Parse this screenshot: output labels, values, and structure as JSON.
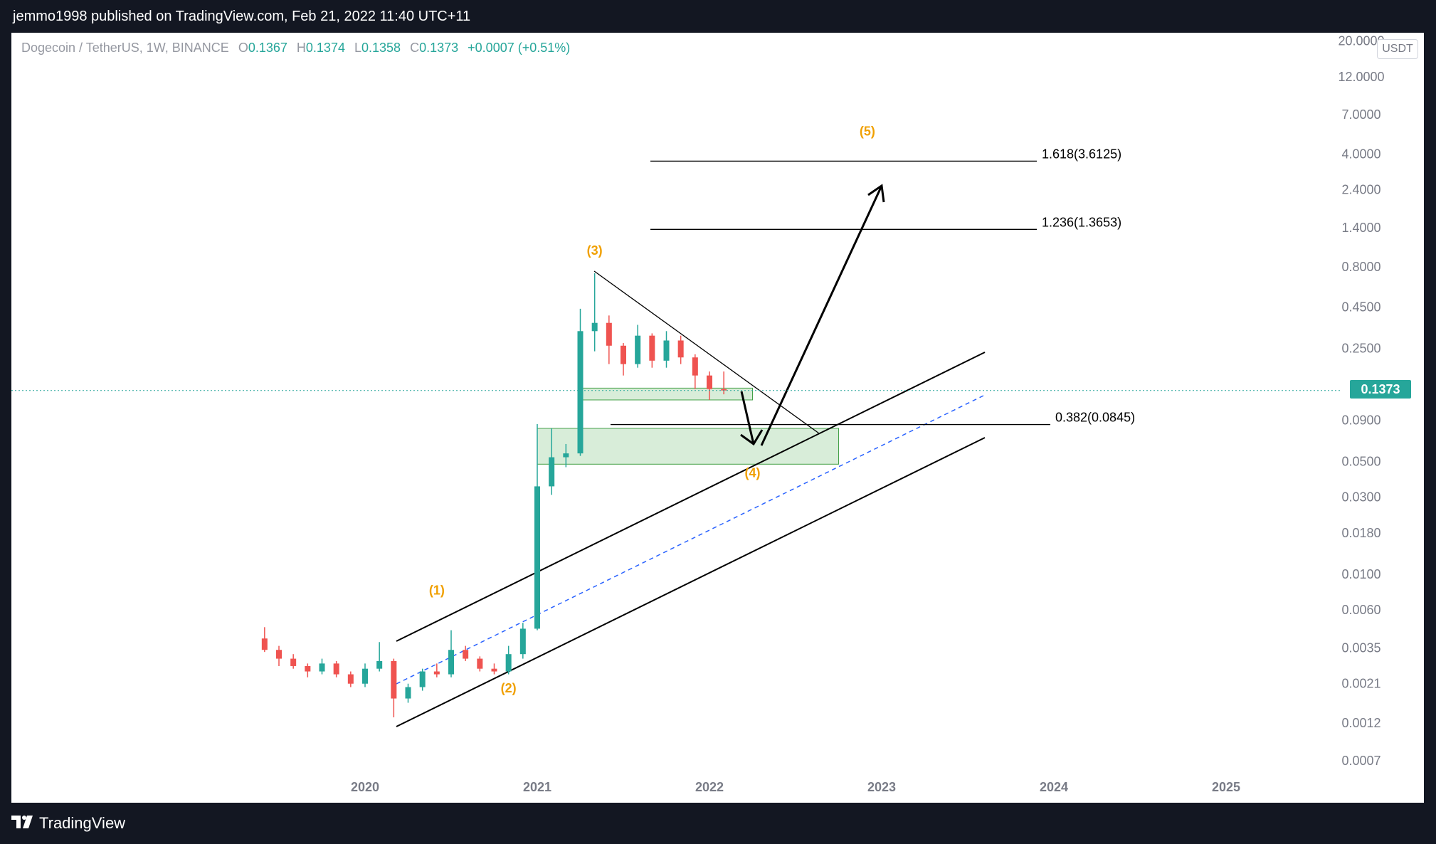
{
  "header": {
    "publish_line": "jemmo1998 published on TradingView.com, Feb 21, 2022 11:40 UTC+11"
  },
  "legend": {
    "symbol": "Dogecoin / TetherUS, 1W, BINANCE",
    "o_key": "O",
    "o": "0.1367",
    "h_key": "H",
    "h": "0.1374",
    "l_key": "L",
    "l": "0.1358",
    "c_key": "C",
    "c": "0.1373",
    "change": "+0.0007 (+0.51%)"
  },
  "currency_badge": "USDT",
  "last_price_tag": "0.1373",
  "footer": {
    "brand": "TradingView"
  },
  "colors": {
    "up": "#26a69a",
    "down": "#ef5350",
    "wave_label": "#f0a000",
    "zone_fill": "#c8e6c9",
    "midline": "#2962ff"
  },
  "chart_data": {
    "type": "candlestick",
    "y_scale": "log",
    "ylim": [
      0.0006,
      20
    ],
    "xlim": [
      "2018-09",
      "2025-12"
    ],
    "y_ticks": [
      "20.0000",
      "12.0000",
      "7.0000",
      "4.0000",
      "2.4000",
      "1.4000",
      "0.8000",
      "0.4500",
      "0.2500",
      "0.0900",
      "0.0500",
      "0.0300",
      "0.0180",
      "0.0100",
      "0.0060",
      "0.0035",
      "0.0021",
      "0.0012",
      "0.0007"
    ],
    "x_ticks": [
      "2020",
      "2021",
      "2022",
      "2023",
      "2024",
      "2025"
    ],
    "last_price": 0.1373,
    "fib_levels": [
      {
        "label": "1.618(3.6125)",
        "value": 3.6125
      },
      {
        "label": "1.236(1.3653)",
        "value": 1.3653
      },
      {
        "label": "0.382(0.0845)",
        "value": 0.0845
      }
    ],
    "wave_labels": [
      {
        "label": "(1)",
        "x": "2020-06",
        "y": 0.0075
      },
      {
        "label": "(2)",
        "x": "2020-11",
        "y": 0.00185
      },
      {
        "label": "(3)",
        "x": "2021-05",
        "y": 0.95
      },
      {
        "label": "(4)",
        "x": "2022-04",
        "y": 0.04
      },
      {
        "label": "(5)",
        "x": "2022-12",
        "y": 5.2
      }
    ],
    "zones": [
      {
        "x0": "2021-04",
        "x1": "2022-04",
        "y0": 0.12,
        "y1": 0.142
      },
      {
        "x0": "2021-01",
        "x1": "2022-10",
        "y0": 0.048,
        "y1": 0.08
      }
    ],
    "candles": [
      {
        "d": "2019-06",
        "o": 0.004,
        "h": 0.0047,
        "l": 0.0033,
        "c": 0.0034
      },
      {
        "d": "2019-07",
        "o": 0.0034,
        "h": 0.0036,
        "l": 0.0027,
        "c": 0.003
      },
      {
        "d": "2019-08",
        "o": 0.003,
        "h": 0.0032,
        "l": 0.0026,
        "c": 0.0027
      },
      {
        "d": "2019-09",
        "o": 0.0027,
        "h": 0.0028,
        "l": 0.0023,
        "c": 0.0025
      },
      {
        "d": "2019-10",
        "o": 0.0025,
        "h": 0.003,
        "l": 0.0024,
        "c": 0.0028
      },
      {
        "d": "2019-11",
        "o": 0.0028,
        "h": 0.0029,
        "l": 0.0023,
        "c": 0.0024
      },
      {
        "d": "2019-12",
        "o": 0.0024,
        "h": 0.0025,
        "l": 0.002,
        "c": 0.0021
      },
      {
        "d": "2020-01",
        "o": 0.0021,
        "h": 0.0028,
        "l": 0.002,
        "c": 0.0026
      },
      {
        "d": "2020-02",
        "o": 0.0026,
        "h": 0.0038,
        "l": 0.0025,
        "c": 0.0029
      },
      {
        "d": "2020-03",
        "o": 0.0029,
        "h": 0.003,
        "l": 0.0013,
        "c": 0.0017
      },
      {
        "d": "2020-04",
        "o": 0.0017,
        "h": 0.0021,
        "l": 0.0016,
        "c": 0.002
      },
      {
        "d": "2020-05",
        "o": 0.002,
        "h": 0.0026,
        "l": 0.0019,
        "c": 0.0025
      },
      {
        "d": "2020-06",
        "o": 0.0025,
        "h": 0.0028,
        "l": 0.0023,
        "c": 0.0024
      },
      {
        "d": "2020-07",
        "o": 0.0024,
        "h": 0.0045,
        "l": 0.0023,
        "c": 0.0034
      },
      {
        "d": "2020-08",
        "o": 0.0034,
        "h": 0.0036,
        "l": 0.0029,
        "c": 0.003
      },
      {
        "d": "2020-09",
        "o": 0.003,
        "h": 0.0031,
        "l": 0.0025,
        "c": 0.0026
      },
      {
        "d": "2020-10",
        "o": 0.0026,
        "h": 0.0028,
        "l": 0.0024,
        "c": 0.0025
      },
      {
        "d": "2020-11",
        "o": 0.0025,
        "h": 0.0036,
        "l": 0.0024,
        "c": 0.0032
      },
      {
        "d": "2020-12",
        "o": 0.0032,
        "h": 0.005,
        "l": 0.003,
        "c": 0.0046
      },
      {
        "d": "2021-01",
        "o": 0.0046,
        "h": 0.085,
        "l": 0.0045,
        "c": 0.035
      },
      {
        "d": "2021-02",
        "o": 0.035,
        "h": 0.08,
        "l": 0.031,
        "c": 0.053
      },
      {
        "d": "2021-03",
        "o": 0.053,
        "h": 0.064,
        "l": 0.046,
        "c": 0.056
      },
      {
        "d": "2021-04",
        "o": 0.056,
        "h": 0.44,
        "l": 0.054,
        "c": 0.32
      },
      {
        "d": "2021-05",
        "o": 0.32,
        "h": 0.73,
        "l": 0.24,
        "c": 0.36
      },
      {
        "d": "2021-06",
        "o": 0.36,
        "h": 0.4,
        "l": 0.2,
        "c": 0.26
      },
      {
        "d": "2021-07",
        "o": 0.26,
        "h": 0.27,
        "l": 0.17,
        "c": 0.2
      },
      {
        "d": "2021-08",
        "o": 0.2,
        "h": 0.35,
        "l": 0.19,
        "c": 0.3
      },
      {
        "d": "2021-09",
        "o": 0.3,
        "h": 0.31,
        "l": 0.19,
        "c": 0.21
      },
      {
        "d": "2021-10",
        "o": 0.21,
        "h": 0.32,
        "l": 0.19,
        "c": 0.28
      },
      {
        "d": "2021-11",
        "o": 0.28,
        "h": 0.3,
        "l": 0.2,
        "c": 0.22
      },
      {
        "d": "2021-12",
        "o": 0.22,
        "h": 0.23,
        "l": 0.14,
        "c": 0.17
      },
      {
        "d": "2022-01",
        "o": 0.17,
        "h": 0.18,
        "l": 0.12,
        "c": 0.14
      },
      {
        "d": "2022-02",
        "o": 0.14,
        "h": 0.18,
        "l": 0.13,
        "c": 0.1373
      }
    ]
  }
}
